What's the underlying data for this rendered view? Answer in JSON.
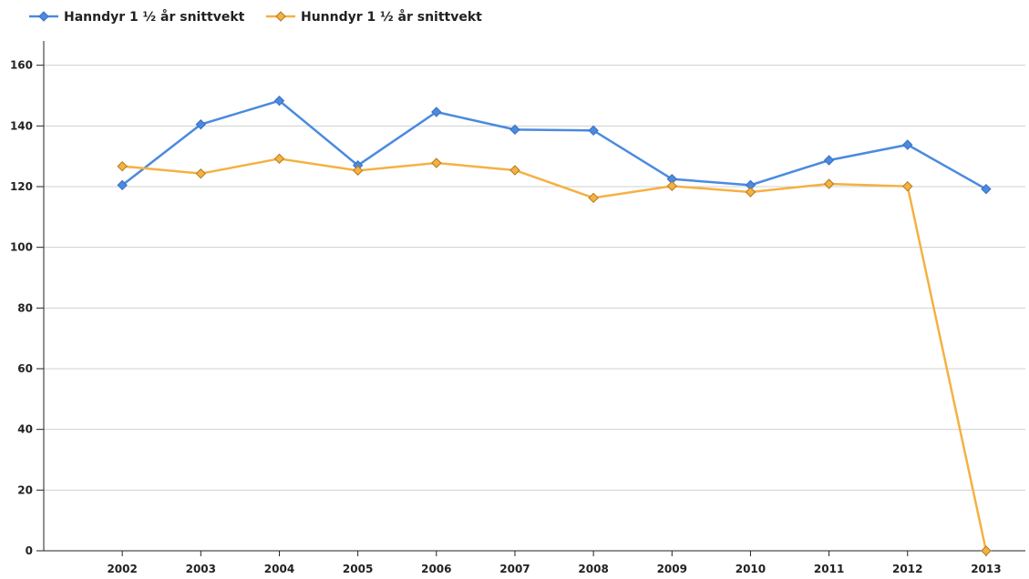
{
  "chart_data": {
    "type": "line",
    "categories": [
      "2002",
      "2003",
      "2004",
      "2005",
      "2006",
      "2007",
      "2008",
      "2009",
      "2010",
      "2011",
      "2012",
      "2013"
    ],
    "series": [
      {
        "name": "Hanndyr 1 ½ år snittvekt",
        "color": "#4a8ae0",
        "values": [
          120.5,
          140.5,
          148.3,
          127,
          144.6,
          138.8,
          138.5,
          122.5,
          120.5,
          128.7,
          133.8,
          119.2
        ]
      },
      {
        "name": "Hunndyr 1 ½ år snittvekt",
        "color": "#f5b141",
        "values": [
          126.7,
          124.3,
          129.2,
          125.3,
          127.8,
          125.4,
          116.3,
          120.2,
          118.2,
          120.9,
          120.1,
          0
        ]
      }
    ],
    "ylim": [
      0,
      168
    ],
    "yticks": [
      0,
      20,
      40,
      60,
      80,
      100,
      120,
      140,
      160
    ],
    "grid": true
  }
}
